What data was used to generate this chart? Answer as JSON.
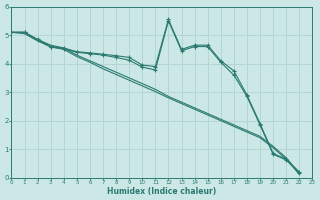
{
  "xlabel": "Humidex (Indice chaleur)",
  "bg_color": "#cce8e6",
  "grid_color": "#b5d5d2",
  "line_color": "#2a7a70",
  "xlim": [
    0,
    23
  ],
  "ylim": [
    0,
    6
  ],
  "xtick_labels": [
    "0",
    "1",
    "2",
    "3",
    "4",
    "5",
    "6",
    "7",
    "8",
    "9",
    "10",
    "11",
    "12",
    "13",
    "14",
    "15",
    "16",
    "17",
    "18",
    "19",
    "20",
    "21",
    "22",
    "23"
  ],
  "ytick_labels": [
    "0",
    "1",
    "2",
    "3",
    "4",
    "5",
    "6"
  ],
  "x_vals": [
    0,
    1,
    2,
    3,
    4,
    5,
    6,
    7,
    8,
    9,
    10,
    11,
    12,
    13,
    14,
    15,
    16,
    17,
    18,
    19,
    20,
    21,
    22
  ],
  "series1": [
    5.1,
    5.1,
    4.85,
    4.65,
    4.55,
    4.3,
    4.1,
    3.9,
    3.7,
    3.5,
    3.3,
    3.1,
    2.85,
    2.65,
    2.45,
    2.25,
    2.05,
    1.85,
    1.65,
    1.45,
    1.1,
    0.7,
    0.15
  ],
  "series2": [
    5.1,
    5.05,
    4.8,
    4.6,
    4.5,
    4.25,
    4.05,
    3.82,
    3.62,
    3.42,
    3.22,
    3.02,
    2.8,
    2.6,
    2.4,
    2.2,
    2.0,
    1.8,
    1.6,
    1.4,
    1.05,
    0.65,
    0.12
  ],
  "series3": [
    5.1,
    5.1,
    4.85,
    4.6,
    4.55,
    4.42,
    4.38,
    4.33,
    4.28,
    4.22,
    3.95,
    3.9,
    5.55,
    4.5,
    4.65,
    4.65,
    4.1,
    3.75,
    2.9,
    1.9,
    0.85,
    0.65,
    0.2
  ],
  "series4": [
    5.1,
    5.1,
    4.82,
    4.58,
    4.52,
    4.4,
    4.35,
    4.3,
    4.22,
    4.12,
    3.88,
    3.78,
    5.5,
    4.45,
    4.6,
    4.6,
    4.05,
    3.6,
    2.85,
    1.85,
    0.82,
    0.62,
    0.18
  ]
}
